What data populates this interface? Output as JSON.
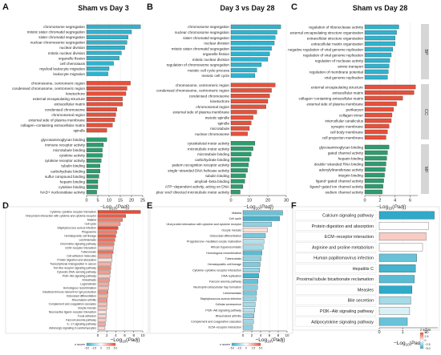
{
  "figure_bar_color_goblue": "#2fb3cf",
  "figure_bar_color_gored": "#e8503a",
  "figure_bar_color_gogreen": "#2e9c6e",
  "chart_data": [
    {
      "panel": "A",
      "title": "Sham vs Day 3",
      "type": "bar",
      "orientation": "horizontal",
      "xlabel": "−Log10(Padj)",
      "xlim": [
        0,
        25
      ],
      "xticks": [
        0,
        5,
        10,
        15,
        20,
        25
      ],
      "groups": [
        {
          "category": "BP",
          "terms": [
            "chromosome segregation",
            "mitotic sister chromatid segregation",
            "sister chromatid segregation",
            "nuclear chromosome segregation",
            "nuclear division",
            "mitotic nuclear division",
            "organelle fission",
            "cell chemotaxis",
            "myeloid leukocyte migration",
            "leukocyte migration"
          ],
          "values": [
            24,
            20,
            18.5,
            18,
            17,
            15.5,
            14.5,
            12,
            10,
            9.5
          ]
        },
        {
          "category": "CC",
          "terms": [
            "chromosome, centromeric region",
            "condensed chromosome, centromeric region",
            "kinetochore",
            "external encapsulating structure",
            "extracellular matrix",
            "condensed chromosome",
            "chromosomal region",
            "external side of plasma membrane",
            "collagen−containing extracellular matrix",
            "spindle"
          ],
          "values": [
            19.5,
            18,
            17.5,
            16,
            16,
            13.5,
            13,
            12.5,
            11.5,
            9
          ]
        },
        {
          "category": "MF",
          "terms": [
            "glycosaminoglycan binding",
            "immune receptor activity",
            "microtubule binding",
            "cytokine activity",
            "cytokine receptor activity",
            "tubulin binding",
            "carbohydrate binding",
            "sulfur compound binding",
            "heparin binding",
            "cytokine binding",
            "NAD+ nucleosidase activity"
          ],
          "values": [
            9,
            7.5,
            7,
            7,
            6.5,
            6,
            6,
            5.5,
            5,
            5,
            4.5
          ]
        }
      ]
    },
    {
      "panel": "B",
      "title": "Day 3 vs Day 28",
      "type": "bar",
      "orientation": "horizontal",
      "xlabel": "−Log10(Padj)",
      "xlim": [
        0,
        30
      ],
      "xticks": [
        0,
        10,
        20,
        30
      ],
      "groups": [
        {
          "category": "BP",
          "terms": [
            "chromosome segregation",
            "nuclear chromosome segregation",
            "sister chromatid segregation",
            "nuclear division",
            "mitotic sister chromatid segregation",
            "organelle fission",
            "mitotic nuclear division",
            "regulation of chromosome segregation",
            "meiotic cell cycle process",
            "meiotic cell cycle"
          ],
          "values": [
            27,
            25,
            24,
            23.5,
            22,
            21,
            20,
            16.5,
            14,
            13
          ]
        },
        {
          "category": "CC",
          "terms": [
            "chromosome, centromeric region",
            "condensed chromosome, centromeric region",
            "condensed chromosome",
            "kinetochore",
            "chromosomal region",
            "external side of plasma membrane",
            "meiotic spindle",
            "spindle",
            "microtubule",
            "nuclear chromosome"
          ],
          "values": [
            24,
            22,
            21,
            20,
            19,
            14,
            12,
            11,
            10,
            9
          ]
        },
        {
          "category": "MF",
          "terms": [
            "cytoskeletal motor activity",
            "microtubule motor activity",
            "microtubule binding",
            "carbohydrate binding",
            "pattern recognition receptor activity",
            "single−stranded DNA helicase activity",
            "tubulin binding",
            "amyloid−beta binding",
            "ATP−dependent activity, acting on DNA",
            "plus−end−directed microtubule motor activity"
          ],
          "values": [
            13,
            12,
            11,
            10,
            9.5,
            9,
            8,
            7.5,
            6.5,
            5
          ]
        }
      ]
    },
    {
      "panel": "C",
      "title": "Sham vs Day 28",
      "type": "bar",
      "orientation": "horizontal",
      "xlabel": "−Log10(Padj)",
      "xlim": [
        0,
        7
      ],
      "xticks": [
        0,
        2,
        4,
        6
      ],
      "groups": [
        {
          "category": "BP",
          "terms": [
            "regulation of ribonuclease activity",
            "external encapsulating structure organization",
            "extracellular structure organization",
            "extracellular matrix organization",
            "negative regulation of viral genome replication",
            "regulation of viral genome replication",
            "regulation of nuclease activity",
            "amine transport",
            "regulation of membrane potential",
            "viral genome replication"
          ],
          "values": [
            4.5,
            4.2,
            4.0,
            4.0,
            3.7,
            3.5,
            3.3,
            3.2,
            3.1,
            3.0
          ]
        },
        {
          "category": "CC",
          "terms": [
            "external encapsulating structure",
            "extracellular matrix",
            "collagen−containing extracellular matrix",
            "external side of plasma membrane",
            "perikaryon",
            "collagen trimer",
            "intercellular canaliculus",
            "synaptic membrane",
            "cell body membrane",
            "cell projection membrane"
          ],
          "values": [
            6.7,
            6.5,
            5.0,
            4.2,
            3.8,
            3.6,
            3.5,
            3.2,
            3.0,
            2.8
          ]
        },
        {
          "category": "MF",
          "terms": [
            "glycosaminoglycan binding",
            "gated channel activity",
            "heparin binding",
            "double−stranded RNA binding",
            "adenylyltransferase activity",
            "integrin binding",
            "ligand−gated channel activity",
            "ligand−gated ion channel activity",
            "sodium channel activity"
          ],
          "values": [
            3.2,
            3.0,
            2.9,
            2.8,
            2.7,
            2.6,
            2.5,
            2.4,
            2.3
          ]
        }
      ]
    },
    {
      "panel": "D",
      "type": "bar",
      "orientation": "horizontal",
      "xlabel": "−Log10(Padj)",
      "xlim": [
        0,
        10
      ],
      "xticks": [
        0,
        2,
        4,
        6,
        8,
        10
      ],
      "legend_title": "z score",
      "legend_ticks": [
        "−5.0",
        "−2.5",
        "0",
        "2.5",
        "5.0"
      ],
      "terms": [
        "Cytokine−cytokine receptor interaction",
        "Viral protein interaction with cytokine and cytokine receptor",
        "Malaria",
        "Cell cycle",
        "Staphylococcus aureus infection",
        "Phagosome",
        "Hematopoietic cell lineage",
        "Leishmaniasis",
        "Chemokine signaling pathway",
        "ECM−receptor interaction",
        "Tuberculosis",
        "Cell adhesion molecules",
        "Protein digestion and absorption",
        "Transcriptional misregulation in cancer",
        "Toll−like receptor signaling pathway",
        "Cytosolic DNA−sensing pathway",
        "PI3K−Akt signaling pathway",
        "Amoebiasis",
        "Legionellosis",
        "Homologous recombination",
        "Intestinal immune network for IgA production",
        "Osteoclast differentiation",
        "Rheumatoid arthritis",
        "Complement and coagulation cascades",
        "Oocyte meiosis",
        "Neuroactive ligand−receptor interaction",
        "Focal adhesion",
        "Fanconi anemia pathway",
        "IL−17 signaling pathway",
        "Adrenergic signaling in cardiomyocytes"
      ],
      "values": [
        9.5,
        6.2,
        5.5,
        5.0,
        4.5,
        4.2,
        4.0,
        3.8,
        3.6,
        3.5,
        3.4,
        3.2,
        3.2,
        3.0,
        2.9,
        2.8,
        2.7,
        2.6,
        2.5,
        2.4,
        2.3,
        2.2,
        2.1,
        2.1,
        2.0,
        1.9,
        1.9,
        1.8,
        1.7,
        1.6
      ],
      "zscores": [
        3.5,
        2.5,
        2.0,
        1.5,
        2.8,
        2.0,
        2.5,
        2.2,
        2.0,
        1.0,
        2.2,
        1.5,
        0.5,
        1.2,
        1.8,
        1.5,
        0.8,
        1.6,
        1.3,
        1.0,
        1.8,
        1.2,
        1.6,
        1.0,
        0.9,
        0.4,
        0.7,
        0.8,
        1.3,
        0.6
      ]
    },
    {
      "panel": "E",
      "type": "bar",
      "orientation": "horizontal",
      "xlabel": "−Log10(Padj)",
      "xlim": [
        0,
        10
      ],
      "xticks": [
        0,
        2,
        4,
        6,
        8,
        10
      ],
      "legend_title": "z score",
      "legend_ticks": [
        "−5.0",
        "−2.5",
        "0",
        "2.5",
        "5.0"
      ],
      "terms": [
        "Malaria",
        "Cell cycle",
        "Viral protein interaction with cytokine and cytokine receptor",
        "Oocyte meiosis",
        "Osteoclast differentiation",
        "Progesterone−mediated oocyte maturation",
        "African trypanosomiasis",
        "Homologous recombination",
        "Tuberculosis",
        "Hematopoietic cell lineage",
        "Cytokine−cytokine receptor interaction",
        "DNA replication",
        "Fanconi anemia pathway",
        "Neutrophil extracellular trap formation",
        "Leishmaniasis",
        "Staphylococcus aureus infection",
        "Cellular senescence",
        "PI3K−Akt signaling pathway",
        "Rheumatoid arthritis",
        "Complement and coagulation cascades",
        "ECM−receptor interaction"
      ],
      "values": [
        9.0,
        8.3,
        6.5,
        5.6,
        5.1,
        4.8,
        4.6,
        4.3,
        4.1,
        3.9,
        3.8,
        3.6,
        3.4,
        3.3,
        3.1,
        3.0,
        2.8,
        2.7,
        2.5,
        2.4,
        2.2
      ],
      "zscores": [
        -2.0,
        -2.5,
        -1.5,
        0.5,
        -1.8,
        -1.0,
        -1.2,
        -2.2,
        -1.5,
        -1.7,
        -1.4,
        -2.5,
        -2.0,
        -1.6,
        -1.8,
        -1.4,
        -1.2,
        -1.0,
        -1.6,
        -1.3,
        -1.5
      ]
    },
    {
      "panel": "F",
      "type": "bar",
      "orientation": "horizontal",
      "xlabel": "−Log10(Padj)",
      "xlim": [
        0,
        2.5
      ],
      "xticks": [
        0,
        1,
        2
      ],
      "legend_title": "z score",
      "legend_ticks": [
        "−5.0",
        "−2.5",
        "0",
        "2.5",
        "5.0"
      ],
      "terms": [
        "Calcium signaling pathway",
        "Protein digestion and absorption",
        "ECM−receptor interaction",
        "Arginine and proline metabolism",
        "Human papillomavirus infection",
        "Hepatitis C",
        "Proximal tubule bicarbonate reclamation",
        "Measles",
        "Bile secretion",
        "PI3K−Akt signaling pathway",
        "Adipocytokine signaling pathway"
      ],
      "values": [
        2.35,
        2.1,
        2.0,
        1.85,
        1.6,
        1.55,
        1.5,
        1.4,
        1.35,
        1.3,
        1.2
      ],
      "zscores": [
        -3.0,
        0.0,
        0.8,
        0.0,
        -2.0,
        -2.5,
        -2.2,
        -2.8,
        -1.2,
        -0.5,
        -2.0
      ]
    }
  ]
}
